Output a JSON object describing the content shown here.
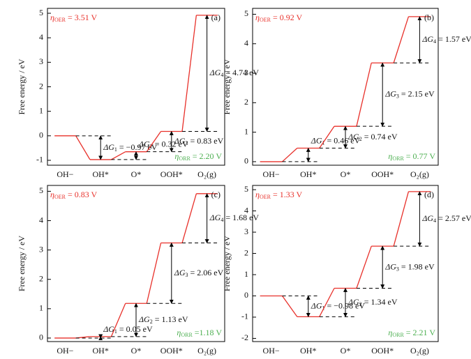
{
  "chart_data": [
    {
      "type": "step",
      "panel_label": "(a)",
      "ylabel": "Free energy / eV",
      "categories": [
        "OH−",
        "OH*",
        "O*",
        "OOH*",
        "O₂(g)"
      ],
      "values": [
        0,
        -0.97,
        -0.65,
        0.18,
        4.92
      ],
      "color": "#e8302a",
      "ylim": [
        -1.2,
        5.2
      ],
      "yticks": [
        -1,
        0,
        1,
        2,
        3,
        4,
        5
      ],
      "eta_oer": {
        "symbol": "η",
        "sub": "OER",
        "rest": " = 3.51 V"
      },
      "eta_orr": {
        "symbol": "η",
        "sub": "ORR",
        "rest": " = 2.20 V"
      },
      "steps": [
        {
          "symbol": "ΔG",
          "sub": "1",
          "rest": " = −0.97 eV"
        },
        {
          "symbol": "ΔG",
          "sub": "2",
          "rest": " = 0.32 eV"
        },
        {
          "symbol": "ΔG",
          "sub": "3",
          "rest": " = 0.83 eV"
        },
        {
          "symbol": "ΔG",
          "sub": "4",
          "rest": " = 4.74 eV"
        }
      ]
    },
    {
      "type": "step",
      "panel_label": "(b)",
      "ylabel": "Free energy / eV",
      "categories": [
        "OH−",
        "OH*",
        "O*",
        "OOH*",
        "O₂(g)"
      ],
      "values": [
        0,
        0.46,
        1.2,
        3.35,
        4.92
      ],
      "color": "#e8302a",
      "ylim": [
        -0.12,
        5.2
      ],
      "yticks": [
        0,
        1,
        2,
        3,
        4,
        5
      ],
      "eta_oer": {
        "symbol": "η",
        "sub": "OER",
        "rest": " = 0.92 V"
      },
      "eta_orr": {
        "symbol": "η",
        "sub": "ORR",
        "rest": " = 0.77 V"
      },
      "steps": [
        {
          "symbol": "ΔG",
          "sub": "1",
          "rest": " = 0.46 eV"
        },
        {
          "symbol": "ΔG",
          "sub": "2",
          "rest": " = 0.74 eV"
        },
        {
          "symbol": "ΔG",
          "sub": "3",
          "rest": " = 2.15 eV"
        },
        {
          "symbol": "ΔG",
          "sub": "4",
          "rest": " = 1.57 eV"
        }
      ]
    },
    {
      "type": "step",
      "panel_label": "(c)",
      "ylabel": "Free energy / eV",
      "categories": [
        "OH−",
        "OH*",
        "O*",
        "OOH*",
        "O₂(g)"
      ],
      "values": [
        0,
        0.05,
        1.18,
        3.24,
        4.92
      ],
      "color": "#e8302a",
      "ylim": [
        -0.12,
        5.2
      ],
      "yticks": [
        0,
        1,
        2,
        3,
        4,
        5
      ],
      "eta_oer": {
        "symbol": "η",
        "sub": "OER",
        "rest": " = 0.83 V"
      },
      "eta_orr": {
        "symbol": "η",
        "sub": "ORR",
        "rest": " =1.18 V"
      },
      "steps": [
        {
          "symbol": "ΔG",
          "sub": "1",
          "rest": " = 0.05 eV"
        },
        {
          "symbol": "ΔG",
          "sub": "2",
          "rest": " = 1.13 eV"
        },
        {
          "symbol": "ΔG",
          "sub": "3",
          "rest": " = 2.06 eV"
        },
        {
          "symbol": "ΔG",
          "sub": "4",
          "rest": " = 1.68 eV"
        }
      ]
    },
    {
      "type": "step",
      "panel_label": "(d)",
      "ylabel": "Free energy / eV",
      "categories": [
        "OH−",
        "OH*",
        "O*",
        "OOH*",
        "O₂(g)"
      ],
      "values": [
        0,
        -0.98,
        0.36,
        2.34,
        4.91
      ],
      "color": "#e8302a",
      "ylim": [
        -2.15,
        5.2
      ],
      "yticks": [
        -2,
        -1,
        0,
        1,
        2,
        3,
        4,
        5
      ],
      "eta_oer": {
        "symbol": "η",
        "sub": "OER",
        "rest": " = 1.33 V"
      },
      "eta_orr": {
        "symbol": "η",
        "sub": "ORR",
        "rest": " = 2.21 V"
      },
      "steps": [
        {
          "symbol": "ΔG",
          "sub": "1",
          "rest": " = −0.98 eV"
        },
        {
          "symbol": "ΔG",
          "sub": "2",
          "rest": " = 1.34 eV"
        },
        {
          "symbol": "ΔG",
          "sub": "3",
          "rest": " = 1.98 eV"
        },
        {
          "symbol": "ΔG",
          "sub": "4",
          "rest": " = 2.57 eV"
        }
      ]
    }
  ]
}
